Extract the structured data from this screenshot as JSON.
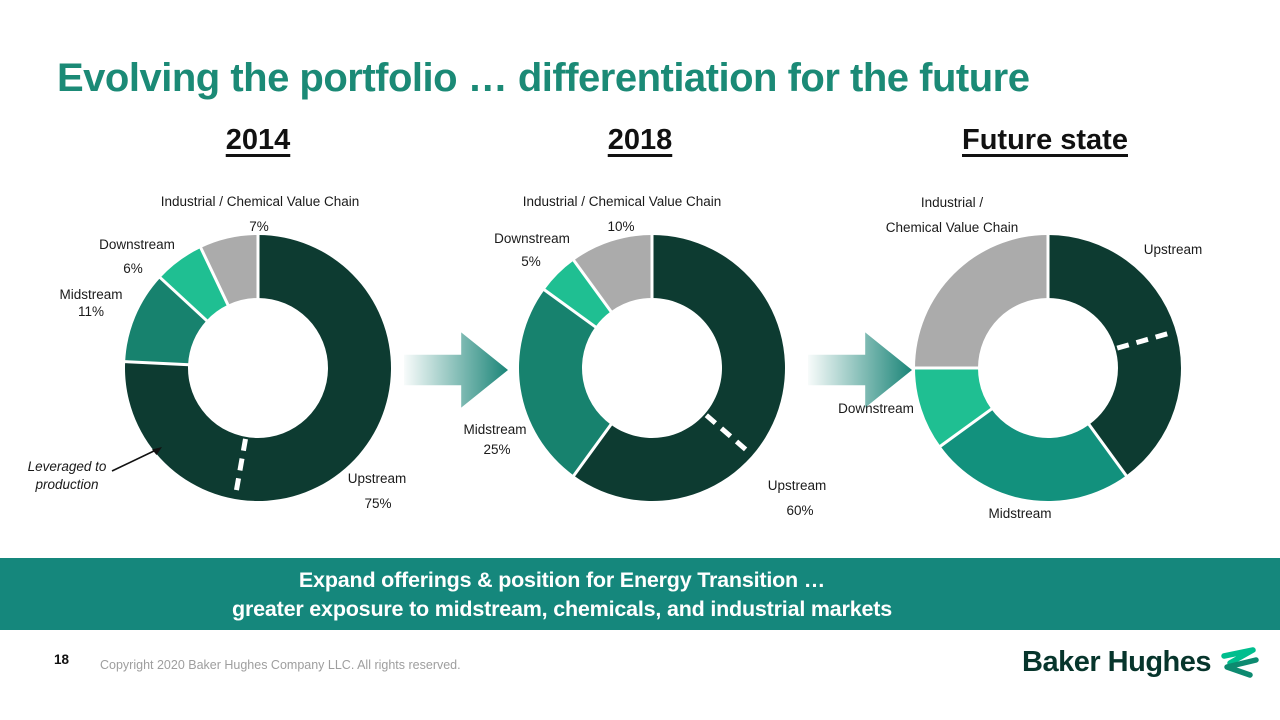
{
  "slide": {
    "title": "Evolving the portfolio … differentiation for the future",
    "page_number": "18",
    "copyright": "Copyright 2020 Baker Hughes Company LLC. All rights reserved.",
    "logo_text": "Baker Hughes",
    "banner": {
      "line1": "Expand offerings & position for Energy Transition …",
      "line2": "greater exposure to midstream, chemicals, and industrial markets",
      "bg_color": "#15877C",
      "text_color": "#FFFFFF"
    },
    "colors": {
      "title": "#1B8A76",
      "arrow": "#1B8578",
      "upstream_dark": "#0D3B31",
      "midstream_teal": "#17826E",
      "downstream_emerald": "#1FBF92",
      "industrial_gray": "#ABABAB",
      "logo_mark_light": "#00BE8E",
      "logo_mark_dark": "#0D8A70"
    }
  },
  "chart_data": [
    {
      "type": "pie",
      "variant": "donut",
      "title": "2014",
      "legend_position": "around",
      "segments": [
        {
          "label": "Upstream",
          "value": 75,
          "value_label": "75%",
          "color": "#0D3B31"
        },
        {
          "label": "Midstream",
          "value": 11,
          "value_label": "11%",
          "color": "#17826E"
        },
        {
          "label": "Downstream",
          "value": 6,
          "value_label": "6%",
          "color": "#1FBF92"
        },
        {
          "label": "Industrial / Chemical Value Chain",
          "value": 7,
          "value_label": "7%",
          "color": "#ABABAB"
        }
      ],
      "annotation": {
        "line1": "Leveraged to",
        "line2": "production",
        "target": "Upstream slice"
      },
      "dash_angle_deg": 190
    },
    {
      "type": "pie",
      "variant": "donut",
      "title": "2018",
      "legend_position": "around",
      "segments": [
        {
          "label": "Upstream",
          "value": 60,
          "value_label": "60%",
          "color": "#0D3B31"
        },
        {
          "label": "Midstream",
          "value": 25,
          "value_label": "25%",
          "color": "#17826E"
        },
        {
          "label": "Downstream",
          "value": 5,
          "value_label": "5%",
          "color": "#1FBF92"
        },
        {
          "label": "Industrial / Chemical Value Chain",
          "value": 10,
          "value_label": "10%",
          "color": "#ABABAB"
        }
      ],
      "dash_angle_deg": 131
    },
    {
      "type": "pie",
      "variant": "donut",
      "title": "Future state",
      "legend_position": "around",
      "values_are_estimates": true,
      "segments": [
        {
          "label": "Upstream",
          "value": 40,
          "value_label": "",
          "color": "#0D3B31"
        },
        {
          "label": "Midstream",
          "value": 25,
          "value_label": "",
          "color": "#12917D"
        },
        {
          "label": "Downstream",
          "value": 10,
          "value_label": "",
          "color": "#1FBF92"
        },
        {
          "label": "Industrial / Chemical Value Chain",
          "value": 25,
          "value_label": "",
          "label_lines": [
            "Industrial /",
            "Chemical Value Chain"
          ],
          "color": "#ABABAB"
        }
      ],
      "dash_angle_deg": 74
    }
  ]
}
